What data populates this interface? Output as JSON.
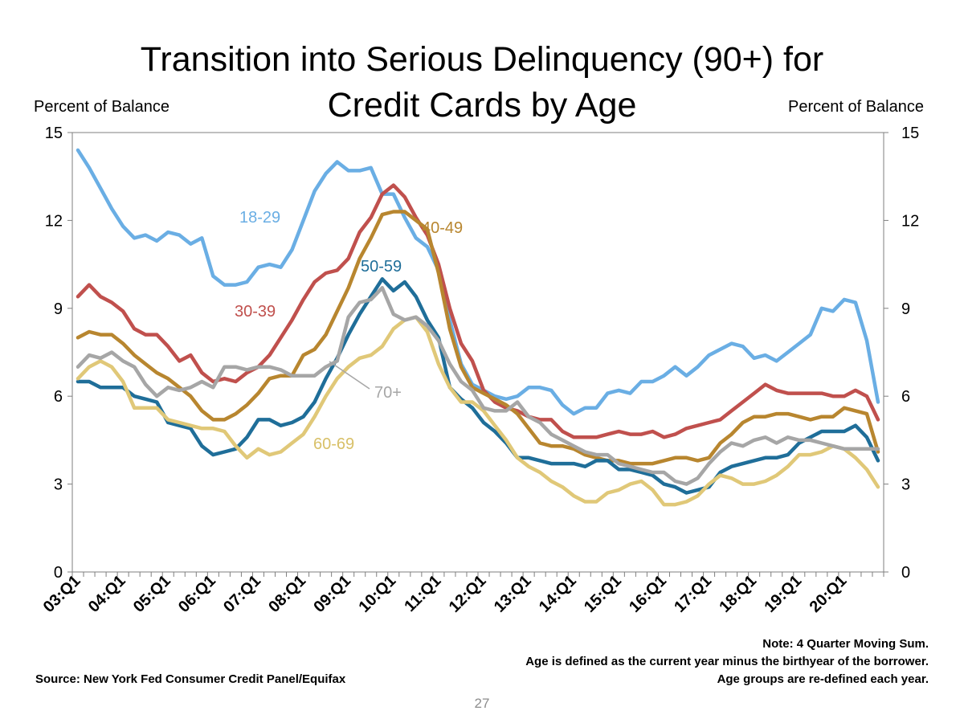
{
  "title_lines": [
    "Transition into Serious Delinquency (90+) for",
    "Credit Cards by Age"
  ],
  "left_axis_label": "Percent of Balance",
  "right_axis_label": "Percent of Balance",
  "notes": [
    "Note: 4 Quarter Moving Sum.",
    "Age is defined as the current year minus the birthyear of the borrower.",
    "Age groups are re-defined each year."
  ],
  "source": "Source: New York Fed Consumer Credit Panel/Equifax",
  "page_number": "27",
  "chart_data": {
    "type": "line",
    "title": "Transition into Serious Delinquency (90+) for Credit Cards by Age",
    "ylabel": "Percent of Balance",
    "ylabel_right": "Percent of Balance",
    "ylim": [
      0,
      15
    ],
    "yticks": [
      0,
      3,
      6,
      9,
      12,
      15
    ],
    "x_tick_labels": [
      "03:Q1",
      "04:Q1",
      "05:Q1",
      "06:Q1",
      "07:Q1",
      "08:Q1",
      "09:Q1",
      "10:Q1",
      "11:Q1",
      "12:Q1",
      "13:Q1",
      "14:Q1",
      "15:Q1",
      "16:Q1",
      "17:Q1",
      "18:Q1",
      "19:Q1",
      "20:Q1"
    ],
    "x_start": "03:Q1",
    "x_end": "20:Q4",
    "points_per_series": 72,
    "grid": false,
    "series": [
      {
        "name": "18-29",
        "color": "#6aaee4",
        "values": [
          14.4,
          13.8,
          13.1,
          12.4,
          11.8,
          11.4,
          11.5,
          11.3,
          11.6,
          11.5,
          11.2,
          11.4,
          10.1,
          9.8,
          9.8,
          9.9,
          10.4,
          10.5,
          10.4,
          11.0,
          12.0,
          13.0,
          13.6,
          14.0,
          13.7,
          13.7,
          13.8,
          12.9,
          12.9,
          12.1,
          11.4,
          11.1,
          10.3,
          8.6,
          7.1,
          6.4,
          6.2,
          6.0,
          5.9,
          6.0,
          6.3,
          6.3,
          6.2,
          5.7,
          5.4,
          5.6,
          5.6,
          6.1,
          6.2,
          6.1,
          6.5,
          6.5,
          6.7,
          7.0,
          6.7,
          7.0,
          7.4,
          7.6,
          7.8,
          7.7,
          7.3,
          7.4,
          7.2,
          7.5,
          7.8,
          8.1,
          9.0,
          8.9,
          9.3,
          9.2,
          7.9,
          5.8
        ]
      },
      {
        "name": "30-39",
        "color": "#c0504d",
        "values": [
          9.4,
          9.8,
          9.4,
          9.2,
          8.9,
          8.3,
          8.1,
          8.1,
          7.7,
          7.2,
          7.4,
          6.8,
          6.5,
          6.6,
          6.5,
          6.8,
          7.0,
          7.4,
          8.0,
          8.6,
          9.3,
          9.9,
          10.2,
          10.3,
          10.7,
          11.6,
          12.1,
          12.9,
          13.2,
          12.8,
          12.1,
          11.5,
          10.5,
          9.0,
          7.8,
          7.2,
          6.2,
          5.8,
          5.6,
          5.5,
          5.3,
          5.2,
          5.2,
          4.8,
          4.6,
          4.6,
          4.6,
          4.7,
          4.8,
          4.7,
          4.7,
          4.8,
          4.6,
          4.7,
          4.9,
          5.0,
          5.1,
          5.2,
          5.5,
          5.8,
          6.1,
          6.4,
          6.2,
          6.1,
          6.1,
          6.1,
          6.1,
          6.0,
          6.0,
          6.2,
          6.0,
          5.2
        ]
      },
      {
        "name": "40-49",
        "color": "#b8862f",
        "values": [
          8.0,
          8.2,
          8.1,
          8.1,
          7.8,
          7.4,
          7.1,
          6.8,
          6.6,
          6.3,
          6.0,
          5.5,
          5.2,
          5.2,
          5.4,
          5.7,
          6.1,
          6.6,
          6.7,
          6.7,
          7.4,
          7.6,
          8.1,
          8.9,
          9.7,
          10.7,
          11.4,
          12.2,
          12.3,
          12.3,
          12.0,
          11.7,
          10.2,
          8.3,
          7.0,
          6.3,
          6.1,
          5.9,
          5.7,
          5.4,
          4.9,
          4.4,
          4.3,
          4.3,
          4.2,
          4.0,
          3.9,
          3.8,
          3.8,
          3.7,
          3.7,
          3.7,
          3.8,
          3.9,
          3.9,
          3.8,
          3.9,
          4.4,
          4.7,
          5.1,
          5.3,
          5.3,
          5.4,
          5.4,
          5.3,
          5.2,
          5.3,
          5.3,
          5.6,
          5.5,
          5.4,
          4.1
        ]
      },
      {
        "name": "50-59",
        "color": "#1f6e99",
        "values": [
          6.5,
          6.5,
          6.3,
          6.3,
          6.3,
          6.0,
          5.9,
          5.8,
          5.1,
          5.0,
          4.9,
          4.3,
          4.0,
          4.1,
          4.2,
          4.6,
          5.2,
          5.2,
          5.0,
          5.1,
          5.3,
          5.8,
          6.6,
          7.3,
          8.1,
          8.8,
          9.4,
          10.0,
          9.6,
          9.9,
          9.4,
          8.6,
          8.0,
          6.3,
          5.9,
          5.6,
          5.1,
          4.8,
          4.4,
          3.9,
          3.9,
          3.8,
          3.7,
          3.7,
          3.7,
          3.6,
          3.8,
          3.8,
          3.5,
          3.5,
          3.4,
          3.3,
          3.0,
          2.9,
          2.7,
          2.8,
          2.9,
          3.4,
          3.6,
          3.7,
          3.8,
          3.9,
          3.9,
          4.0,
          4.4,
          4.6,
          4.8,
          4.8,
          4.8,
          5.0,
          4.6,
          3.8
        ]
      },
      {
        "name": "60-69",
        "color": "#e0c878",
        "values": [
          6.6,
          7.0,
          7.2,
          7.0,
          6.5,
          5.6,
          5.6,
          5.6,
          5.2,
          5.1,
          5.0,
          4.9,
          4.9,
          4.8,
          4.3,
          3.9,
          4.2,
          4.0,
          4.1,
          4.4,
          4.7,
          5.3,
          6.0,
          6.6,
          7.0,
          7.3,
          7.4,
          7.7,
          8.3,
          8.6,
          8.7,
          8.2,
          7.1,
          6.3,
          5.8,
          5.8,
          5.5,
          5.0,
          4.5,
          3.9,
          3.6,
          3.4,
          3.1,
          2.9,
          2.6,
          2.4,
          2.4,
          2.7,
          2.8,
          3.0,
          3.1,
          2.8,
          2.3,
          2.3,
          2.4,
          2.6,
          3.0,
          3.3,
          3.2,
          3.0,
          3.0,
          3.1,
          3.3,
          3.6,
          4.0,
          4.0,
          4.1,
          4.3,
          4.2,
          3.9,
          3.5,
          2.9
        ]
      },
      {
        "name": "70+",
        "color": "#a6a6a6",
        "values": [
          7.0,
          7.4,
          7.3,
          7.5,
          7.2,
          7.0,
          6.4,
          6.0,
          6.3,
          6.2,
          6.3,
          6.5,
          6.3,
          7.0,
          7.0,
          6.9,
          7.0,
          7.0,
          6.9,
          6.7,
          6.7,
          6.7,
          7.0,
          7.2,
          8.7,
          9.2,
          9.3,
          9.7,
          8.8,
          8.6,
          8.7,
          8.4,
          7.9,
          7.1,
          6.5,
          6.2,
          5.6,
          5.5,
          5.5,
          5.8,
          5.3,
          5.1,
          4.7,
          4.5,
          4.3,
          4.1,
          4.0,
          4.0,
          3.7,
          3.6,
          3.5,
          3.4,
          3.4,
          3.1,
          3.0,
          3.2,
          3.7,
          4.1,
          4.4,
          4.3,
          4.5,
          4.6,
          4.4,
          4.6,
          4.5,
          4.5,
          4.4,
          4.3,
          4.2,
          4.2,
          4.2,
          4.2
        ]
      }
    ],
    "annotations": [
      {
        "text": "18-29",
        "series": "18-29"
      },
      {
        "text": "30-39",
        "series": "30-39"
      },
      {
        "text": "40-49",
        "series": "40-49"
      },
      {
        "text": "50-59",
        "series": "50-59"
      },
      {
        "text": "60-69",
        "series": "60-69"
      },
      {
        "text": "70+",
        "series": "70+"
      }
    ]
  }
}
